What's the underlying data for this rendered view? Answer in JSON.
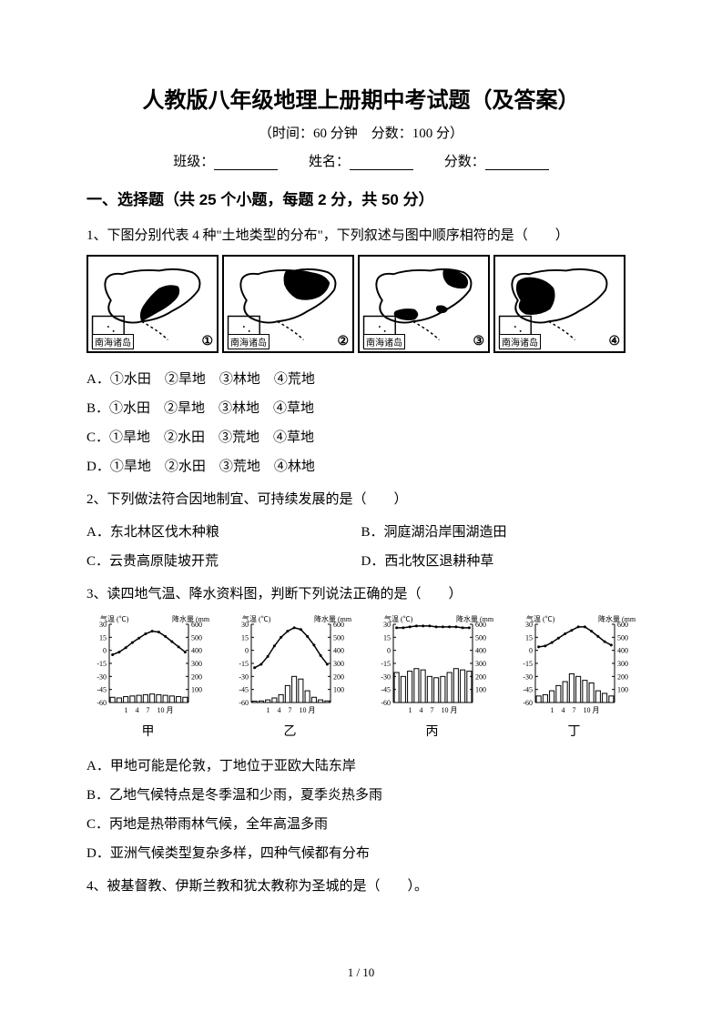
{
  "title": "人教版八年级地理上册期中考试题（及答案）",
  "subtitle": "（时间：60 分钟　分数：100 分）",
  "info": {
    "class": "班级：",
    "name": "姓名：",
    "score": "分数："
  },
  "section1": "一、选择题（共 25 个小题，每题 2 分，共 50 分）",
  "q1": {
    "stem": "1、下图分别代表 4 种\"土地类型的分布\"，下列叙述与图中顺序相符的是（　　）",
    "maps": [
      "①",
      "②",
      "③",
      "④"
    ],
    "map_label": "南海诸岛",
    "choices": [
      "A．①水田　②旱地　③林地　④荒地",
      "B．①水田　②旱地　③林地　④草地",
      "C．①旱地　②水田　③荒地　④草地",
      "D．①旱地　②水田　③荒地　④林地"
    ]
  },
  "q2": {
    "stem": "2、下列做法符合因地制宜、可持续发展的是（　　）",
    "choices": [
      [
        "A．东北林区伐木种粮",
        "B．洞庭湖沿岸围湖造田"
      ],
      [
        "C．云贵高原陡坡开荒",
        "D．西北牧区退耕种草"
      ]
    ]
  },
  "q3": {
    "stem": "3、读四地气温、降水资料图，判断下列说法正确的是（　　）",
    "climate_labels": [
      "甲",
      "乙",
      "丙",
      "丁"
    ],
    "axis": {
      "temp_label": "气温 (℃)",
      "precip_label": "降水量 (mm)",
      "temp_ticks": [
        30,
        15,
        0,
        -15,
        -30,
        -45,
        -60
      ],
      "precip_ticks": [
        600,
        500,
        400,
        300,
        200,
        100
      ],
      "x_ticks": "1　4　7　10 月"
    },
    "climates": {
      "jia": {
        "temp": [
          -5,
          -2,
          3,
          9,
          14,
          19,
          22,
          21,
          16,
          10,
          4,
          -2
        ],
        "precip": [
          40,
          35,
          45,
          50,
          55,
          60,
          65,
          60,
          55,
          50,
          45,
          40
        ]
      },
      "yi": {
        "temp": [
          -20,
          -16,
          -7,
          5,
          15,
          22,
          26,
          24,
          16,
          6,
          -6,
          -16
        ],
        "precip": [
          10,
          12,
          20,
          35,
          60,
          130,
          200,
          180,
          90,
          40,
          20,
          12
        ]
      },
      "bing": {
        "temp": [
          26,
          26,
          27,
          28,
          28,
          28,
          27,
          27,
          27,
          27,
          26,
          26
        ],
        "precip": [
          230,
          200,
          240,
          260,
          250,
          200,
          190,
          200,
          230,
          260,
          250,
          240
        ]
      },
      "ding": {
        "temp": [
          4,
          5,
          9,
          14,
          19,
          23,
          27,
          27,
          22,
          16,
          10,
          6
        ],
        "precip": [
          50,
          60,
          90,
          130,
          160,
          220,
          200,
          170,
          150,
          90,
          70,
          50
        ]
      }
    },
    "choices": [
      "A．甲地可能是伦敦，丁地位于亚欧大陆东岸",
      "B．乙地气候特点是冬季温和少雨，夏季炎热多雨",
      "C．丙地是热带雨林气候，全年高温多雨",
      "D．亚洲气候类型复杂多样，四种气候都有分布"
    ]
  },
  "q4": {
    "stem": "4、被基督教、伊斯兰教和犹太教称为圣城的是（　　）。"
  },
  "page_num": "1 / 10",
  "colors": {
    "fg": "#000000",
    "bg": "#ffffff"
  }
}
